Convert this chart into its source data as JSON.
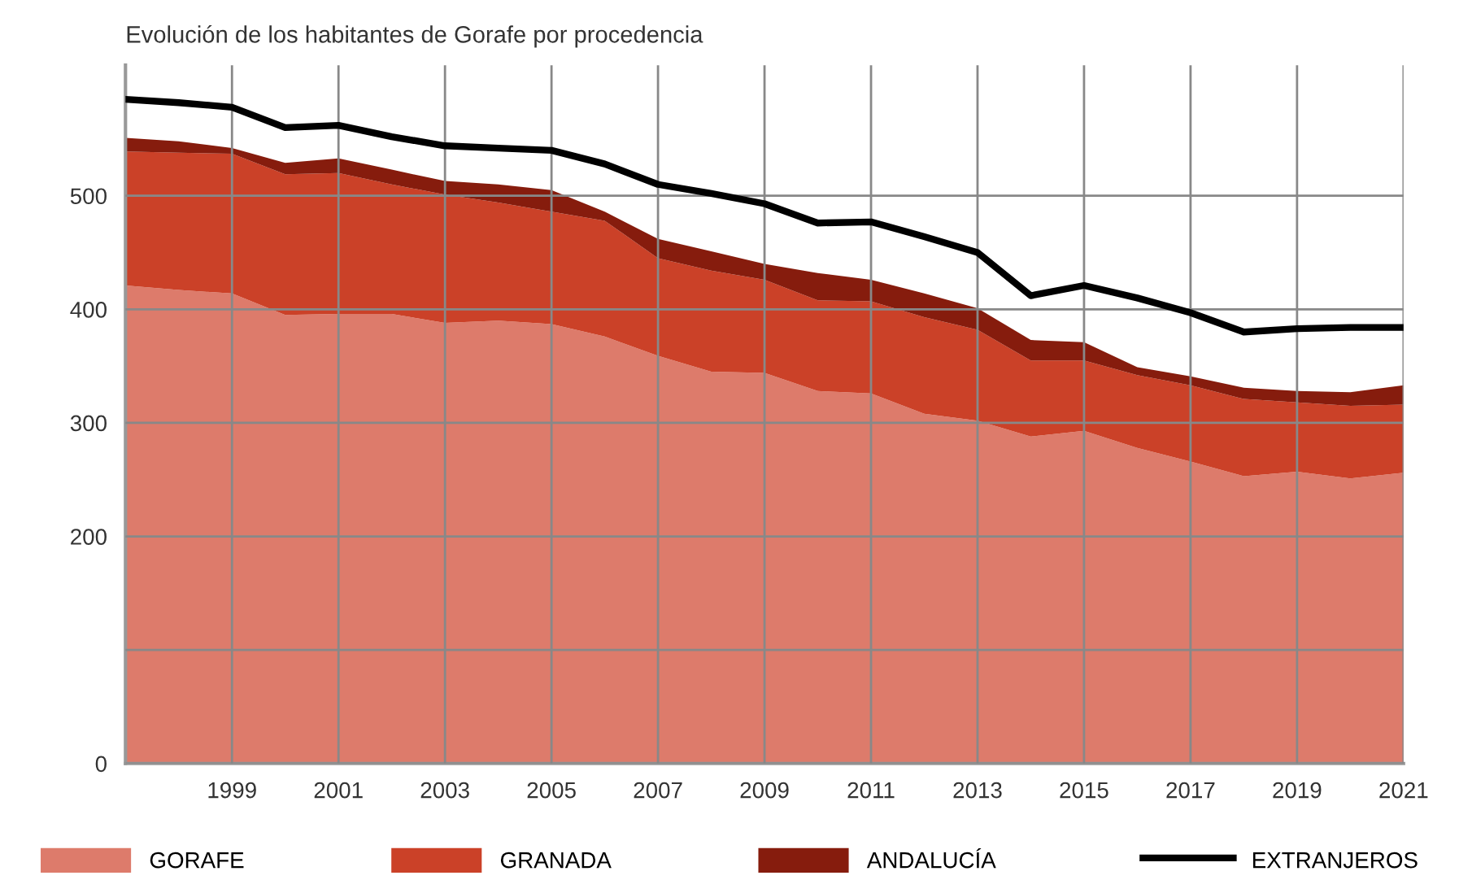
{
  "chart_data": {
    "type": "area",
    "title": "Evolución de los habitantes de Gorafe por procedencia",
    "stacked": true,
    "x": [
      1997,
      1998,
      1999,
      2000,
      2001,
      2002,
      2003,
      2004,
      2005,
      2006,
      2007,
      2008,
      2009,
      2010,
      2011,
      2012,
      2013,
      2014,
      2015,
      2016,
      2017,
      2018,
      2019,
      2020,
      2021
    ],
    "series": [
      {
        "name": "GORAFE",
        "color": "#dd7b6b",
        "values": [
          421,
          417,
          414,
          395,
          396,
          396,
          388,
          390,
          387,
          376,
          359,
          345,
          344,
          328,
          326,
          308,
          302,
          288,
          293,
          278,
          266,
          253,
          257,
          251,
          256
        ]
      },
      {
        "name": "GRANADA",
        "color": "#cb4128",
        "values": [
          118,
          121,
          123,
          124,
          124,
          114,
          113,
          104,
          99,
          102,
          86,
          89,
          82,
          80,
          81,
          85,
          80,
          67,
          62,
          64,
          67,
          68,
          61,
          64,
          60
        ]
      },
      {
        "name": "ANDALUCÍA",
        "color": "#861c0d",
        "values": [
          12,
          10,
          5,
          10,
          13,
          13,
          12,
          16,
          19,
          8,
          17,
          17,
          14,
          24,
          19,
          21,
          19,
          18,
          16,
          7,
          8,
          10,
          10,
          12,
          17
        ]
      },
      {
        "name": "EXTRANJEROS",
        "type": "line",
        "color": "#000000",
        "values": [
          585,
          582,
          578,
          560,
          562,
          552,
          544,
          542,
          540,
          528,
          510,
          502,
          493,
          476,
          477,
          464,
          450,
          412,
          421,
          410,
          397,
          380,
          383,
          384,
          384
        ]
      }
    ],
    "xlim": [
      1997,
      2021
    ],
    "xticks": [
      1999,
      2001,
      2003,
      2005,
      2007,
      2009,
      2011,
      2013,
      2015,
      2017,
      2019,
      2021
    ],
    "ylim": [
      0,
      615
    ],
    "yticks": [
      0,
      {
        "value": 100,
        "label": null
      },
      200,
      300,
      400,
      500
    ],
    "grid": true,
    "legend": "bottom",
    "marker": "none",
    "line_style": "solid"
  }
}
